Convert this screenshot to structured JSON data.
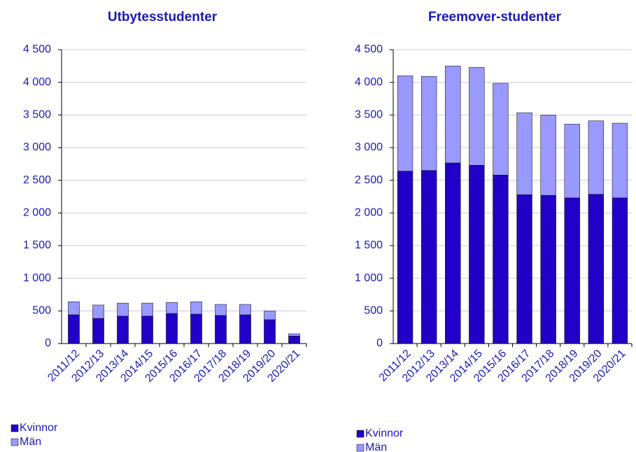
{
  "chart_data": [
    {
      "type": "bar",
      "stacked": true,
      "title": "Utbytesstudenter",
      "categories": [
        "2011/12",
        "2012/13",
        "2013/14",
        "2014/15",
        "2015/16",
        "2016/17",
        "2017/18",
        "2018/19",
        "2019/20",
        "2020/21"
      ],
      "series": [
        {
          "name": "Kvinnor",
          "color": "#2200c8",
          "values": [
            440,
            385,
            420,
            420,
            460,
            450,
            430,
            440,
            365,
            115
          ]
        },
        {
          "name": "Män",
          "color": "#9999ff",
          "values": [
            200,
            205,
            200,
            200,
            170,
            190,
            170,
            160,
            135,
            35
          ]
        }
      ],
      "ylim": [
        0,
        4500
      ],
      "yticks": [
        0,
        500,
        {
          "value": 1000,
          "label": "1 000"
        },
        {
          "value": 1500,
          "label": "1 500"
        },
        {
          "value": 2000,
          "label": "2 000"
        },
        {
          "value": 2500,
          "label": "2 500"
        },
        {
          "value": 3000,
          "label": "3 000"
        },
        {
          "value": 3500,
          "label": "3 500"
        },
        {
          "value": 4000,
          "label": "4 000"
        },
        {
          "value": 4500,
          "label": "4 500"
        }
      ],
      "grid": true
    },
    {
      "type": "bar",
      "stacked": true,
      "title": "Freemover-studenter",
      "categories": [
        "2011/12",
        "2012/13",
        "2013/14",
        "2014/15",
        "2015/16",
        "2016/17",
        "2017/18",
        "2018/19",
        "2019/20",
        "2020/21"
      ],
      "series": [
        {
          "name": "Kvinnor",
          "color": "#2200c8",
          "values": [
            2640,
            2650,
            2765,
            2730,
            2580,
            2280,
            2270,
            2230,
            2285,
            2230
          ]
        },
        {
          "name": "Män",
          "color": "#9999ff",
          "values": [
            1460,
            1440,
            1485,
            1500,
            1405,
            1255,
            1230,
            1130,
            1125,
            1145
          ]
        }
      ],
      "ylim": [
        0,
        4500
      ],
      "yticks": [
        0,
        500,
        {
          "value": 1000,
          "label": "1 000"
        },
        {
          "value": 1500,
          "label": "1 500"
        },
        {
          "value": 2000,
          "label": "2 000"
        },
        {
          "value": 2500,
          "label": "2 500"
        },
        {
          "value": 3000,
          "label": "3 000"
        },
        {
          "value": 3500,
          "label": "3 500"
        },
        {
          "value": 4000,
          "label": "4 000"
        },
        {
          "value": 4500,
          "label": "4 500"
        }
      ],
      "grid": true
    }
  ]
}
